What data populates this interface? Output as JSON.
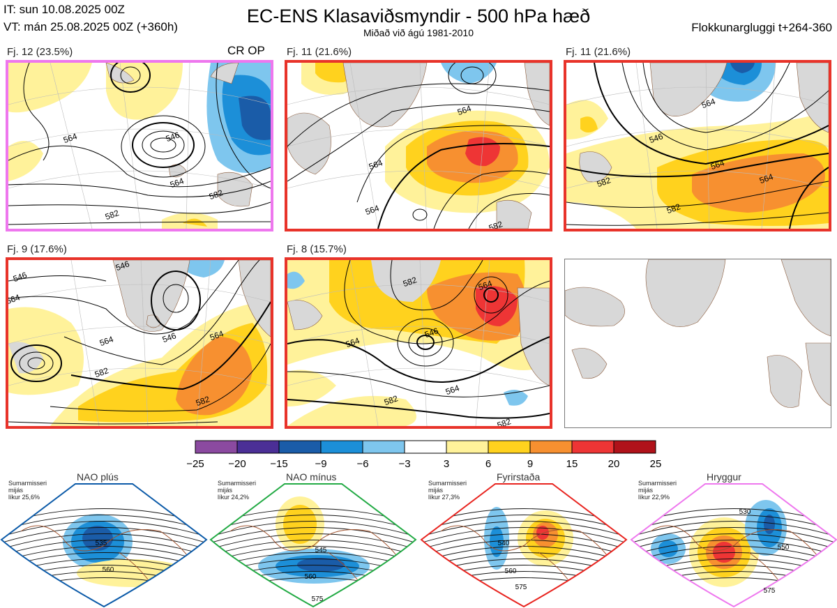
{
  "header": {
    "it_line": "IT: sun 10.08.2025 00Z",
    "vt_line": "VT: mán 25.08.2025 00Z  (+360h)",
    "title": "EC-ENS Klasaviðsmyndir - 500 hPa hæð",
    "subtitle": "Miðað við ágú 1981-2010",
    "window": "Flokkunargluggi t+264-360"
  },
  "panels": [
    {
      "label": "Fj. 12 (23.5%)",
      "tag": "CR OP",
      "frame_color": "#ee77ee",
      "contours": [
        "564",
        "546",
        "564",
        "582",
        "582"
      ]
    },
    {
      "label": "Fj. 11 (21.6%)",
      "tag": "",
      "frame_color": "#e8332a",
      "contours": [
        "564",
        "564",
        "564",
        "582"
      ]
    },
    {
      "label": "Fj. 11 (21.6%)",
      "tag": "",
      "frame_color": "#e8332a",
      "contours": [
        "564",
        "546",
        "564",
        "582",
        "582",
        "564"
      ]
    },
    {
      "label": "Fj. 9 (17.6%)",
      "tag": "",
      "frame_color": "#e8332a",
      "contours": [
        "546",
        "546",
        "564",
        "564",
        "546",
        "564",
        "582",
        "582"
      ]
    },
    {
      "label": "Fj. 8 (15.7%)",
      "tag": "",
      "frame_color": "#e8332a",
      "contours": [
        "582",
        "564",
        "546",
        "564",
        "564",
        "582",
        "582"
      ]
    }
  ],
  "colorbar": {
    "ticks": [
      "−25",
      "−20",
      "−15",
      "−9",
      "−6",
      "−3",
      "3",
      "6",
      "9",
      "15",
      "20",
      "25"
    ],
    "colors": [
      "#8b4aa0",
      "#4b2f96",
      "#1a5ca8",
      "#1c8fd8",
      "#7ec6ee",
      "#ffffff",
      "#fff29a",
      "#ffd21e",
      "#f79030",
      "#ee3535",
      "#b0121a"
    ]
  },
  "regimes": [
    {
      "name": "NAO plús",
      "season": "Sumarmisseri",
      "sub": "mijás",
      "prob": "líkur 25,6%",
      "color": "#0b5aa8",
      "contours": [
        "535",
        "560"
      ]
    },
    {
      "name": "NAO mínus",
      "season": "Sumarmisseri",
      "sub": "mijás",
      "prob": "líkur 24,2%",
      "color": "#22aa44",
      "contours": [
        "545",
        "560",
        "575"
      ]
    },
    {
      "name": "Fyrirstaða",
      "season": "Sumarmisseri",
      "sub": "mijás",
      "prob": "líkur 27,3%",
      "color": "#e8241f",
      "contours": [
        "540",
        "560",
        "575"
      ]
    },
    {
      "name": "Hryggur",
      "season": "Sumarmisseri",
      "sub": "mijás",
      "prob": "líkur 22,9%",
      "color": "#ee77ee",
      "contours": [
        "530",
        "550",
        "575"
      ]
    }
  ],
  "chart_data": {
    "type": "heatmap",
    "title": "EC-ENS Klasaviðsmyndir - 500 hPa hæð",
    "colorbar_levels": [
      -25,
      -20,
      -15,
      -9,
      -6,
      -3,
      3,
      6,
      9,
      15,
      20,
      25
    ],
    "clusters": [
      {
        "name": "Fj. 12",
        "percent": 23.5
      },
      {
        "name": "Fj. 11",
        "percent": 21.6
      },
      {
        "name": "Fj. 11",
        "percent": 21.6
      },
      {
        "name": "Fj. 9",
        "percent": 17.6
      },
      {
        "name": "Fj. 8",
        "percent": 15.7
      }
    ],
    "regimes": [
      {
        "name": "NAO plús",
        "percent": 25.6
      },
      {
        "name": "NAO mínus",
        "percent": 24.2
      },
      {
        "name": "Fyrirstaða",
        "percent": 27.3
      },
      {
        "name": "Hryggur",
        "percent": 22.9
      }
    ]
  }
}
